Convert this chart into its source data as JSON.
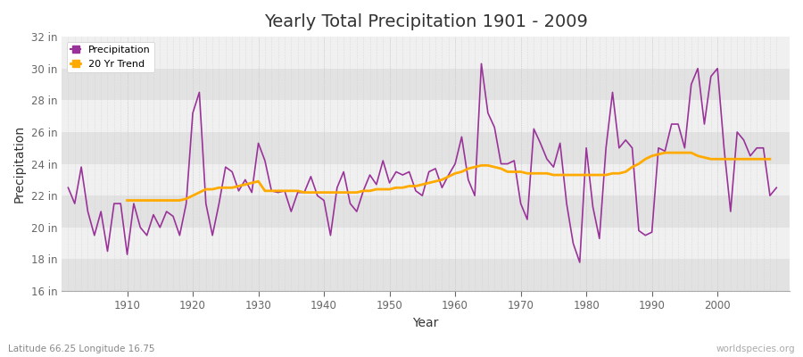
{
  "title": "Yearly Total Precipitation 1901 - 2009",
  "xlabel": "Year",
  "ylabel": "Precipitation",
  "lat_lon_label": "Latitude 66.25 Longitude 16.75",
  "watermark": "worldspecies.org",
  "fig_bg_color": "#ffffff",
  "plot_bg_color": "#f0f0f0",
  "band_light": "#f0f0f0",
  "band_dark": "#e2e2e2",
  "precip_color": "#993399",
  "trend_color": "#ffaa00",
  "grid_color": "#cccccc",
  "text_color": "#333333",
  "tick_color": "#666666",
  "ylim": [
    16,
    32
  ],
  "yticks": [
    16,
    18,
    20,
    22,
    24,
    26,
    28,
    30,
    32
  ],
  "ytick_labels": [
    "16 in",
    "18 in",
    "20 in",
    "22 in",
    "24 in",
    "26 in",
    "28 in",
    "30 in",
    "32 in"
  ],
  "xticks": [
    1910,
    1920,
    1930,
    1940,
    1950,
    1960,
    1970,
    1980,
    1990,
    2000
  ],
  "years": [
    1901,
    1902,
    1903,
    1904,
    1905,
    1906,
    1907,
    1908,
    1909,
    1910,
    1911,
    1912,
    1913,
    1914,
    1915,
    1916,
    1917,
    1918,
    1919,
    1920,
    1921,
    1922,
    1923,
    1924,
    1925,
    1926,
    1927,
    1928,
    1929,
    1930,
    1931,
    1932,
    1933,
    1934,
    1935,
    1936,
    1937,
    1938,
    1939,
    1940,
    1941,
    1942,
    1943,
    1944,
    1945,
    1946,
    1947,
    1948,
    1949,
    1950,
    1951,
    1952,
    1953,
    1954,
    1955,
    1956,
    1957,
    1958,
    1959,
    1960,
    1961,
    1962,
    1963,
    1964,
    1965,
    1966,
    1967,
    1968,
    1969,
    1970,
    1971,
    1972,
    1973,
    1974,
    1975,
    1976,
    1977,
    1978,
    1979,
    1980,
    1981,
    1982,
    1983,
    1984,
    1985,
    1986,
    1987,
    1988,
    1989,
    1990,
    1991,
    1992,
    1993,
    1994,
    1995,
    1996,
    1997,
    1998,
    1999,
    2000,
    2001,
    2002,
    2003,
    2004,
    2005,
    2006,
    2007,
    2008,
    2009
  ],
  "precip": [
    22.5,
    21.5,
    23.8,
    21.0,
    19.5,
    21.0,
    18.5,
    21.5,
    21.5,
    18.3,
    21.5,
    20.0,
    19.5,
    20.8,
    20.0,
    21.0,
    20.7,
    19.5,
    21.5,
    27.2,
    28.5,
    21.5,
    19.5,
    21.5,
    23.8,
    23.5,
    22.3,
    23.0,
    22.2,
    25.3,
    24.2,
    22.3,
    22.2,
    22.3,
    21.0,
    22.2,
    22.2,
    23.2,
    22.0,
    21.7,
    19.5,
    22.5,
    23.5,
    21.5,
    21.0,
    22.3,
    23.3,
    22.7,
    24.2,
    22.8,
    23.5,
    23.3,
    23.5,
    22.3,
    22.0,
    23.5,
    23.7,
    22.5,
    23.3,
    24.0,
    25.7,
    23.0,
    22.0,
    30.3,
    27.2,
    26.3,
    24.0,
    24.0,
    24.2,
    21.5,
    20.5,
    26.2,
    25.3,
    24.3,
    23.8,
    25.3,
    21.5,
    19.0,
    17.8,
    25.0,
    21.3,
    19.3,
    25.0,
    28.5,
    25.0,
    25.5,
    25.0,
    19.8,
    19.5,
    19.7,
    25.0,
    24.8,
    26.5,
    26.5,
    25.0,
    29.0,
    30.0,
    26.5,
    29.5,
    30.0,
    25.0,
    21.0,
    26.0,
    25.5,
    24.5,
    25.0,
    25.0,
    22.0,
    22.5
  ],
  "trend": [
    null,
    null,
    null,
    null,
    null,
    null,
    null,
    null,
    null,
    21.7,
    21.7,
    21.7,
    21.7,
    21.7,
    21.7,
    21.7,
    21.7,
    21.7,
    21.8,
    22.0,
    22.2,
    22.4,
    22.4,
    22.5,
    22.5,
    22.5,
    22.6,
    22.7,
    22.8,
    22.9,
    22.3,
    22.3,
    22.3,
    22.3,
    22.3,
    22.3,
    22.2,
    22.2,
    22.2,
    22.2,
    22.2,
    22.2,
    22.2,
    22.2,
    22.2,
    22.3,
    22.3,
    22.4,
    22.4,
    22.4,
    22.5,
    22.5,
    22.6,
    22.6,
    22.7,
    22.8,
    22.9,
    23.0,
    23.2,
    23.4,
    23.5,
    23.7,
    23.8,
    23.9,
    23.9,
    23.8,
    23.7,
    23.5,
    23.5,
    23.5,
    23.4,
    23.4,
    23.4,
    23.4,
    23.3,
    23.3,
    23.3,
    23.3,
    23.3,
    23.3,
    23.3,
    23.3,
    23.3,
    23.4,
    23.4,
    23.5,
    23.8,
    24.0,
    24.3,
    24.5,
    24.6,
    24.7,
    24.7,
    24.7,
    24.7,
    24.7,
    24.5,
    24.4,
    24.3,
    24.3,
    24.3,
    24.3,
    24.3,
    24.3,
    24.3,
    24.3,
    24.3,
    24.3
  ]
}
